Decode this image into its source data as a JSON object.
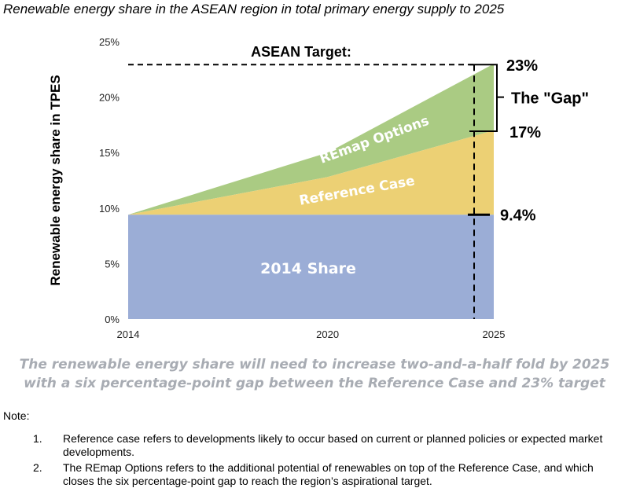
{
  "title": "Renewable energy share in the ASEAN region in total primary energy supply to 2025",
  "chart_data": {
    "type": "area",
    "ylabel": "Renewable energy share in TPES",
    "ylim": [
      0,
      25
    ],
    "yticks": [
      "0%",
      "5%",
      "10%",
      "15%",
      "20%",
      "25%"
    ],
    "x": [
      2014,
      2020,
      2025
    ],
    "series": [
      {
        "name": "2014 Share",
        "color": "#9badd6",
        "values": [
          9.4,
          9.4,
          9.4
        ]
      },
      {
        "name": "Reference Case",
        "color": "#ecd074",
        "values": [
          9.4,
          12.8,
          17
        ]
      },
      {
        "name": "REmap Options",
        "color": "#aacb83",
        "values": [
          9.4,
          15,
          23
        ]
      }
    ],
    "target_label": "ASEAN Target:",
    "annotations": {
      "top": "23%",
      "gap": "The \"Gap\"",
      "mid": "17%",
      "base": "9.4%"
    }
  },
  "caption": [
    "The renewable energy share will need to increase two-and-a-half fold by 2025",
    "with a six percentage-point gap between the Reference Case and 23% target"
  ],
  "note_title": "Note:",
  "notes": [
    {
      "num": "1.",
      "text": "Reference case refers to developments likely to occur based on current or planned policies or expected market developments."
    },
    {
      "num": "2.",
      "text": "The REmap Options refers to the additional potential of renewables on top of the Reference Case, and which closes the six percentage-point gap to reach the region’s aspirational target."
    }
  ]
}
